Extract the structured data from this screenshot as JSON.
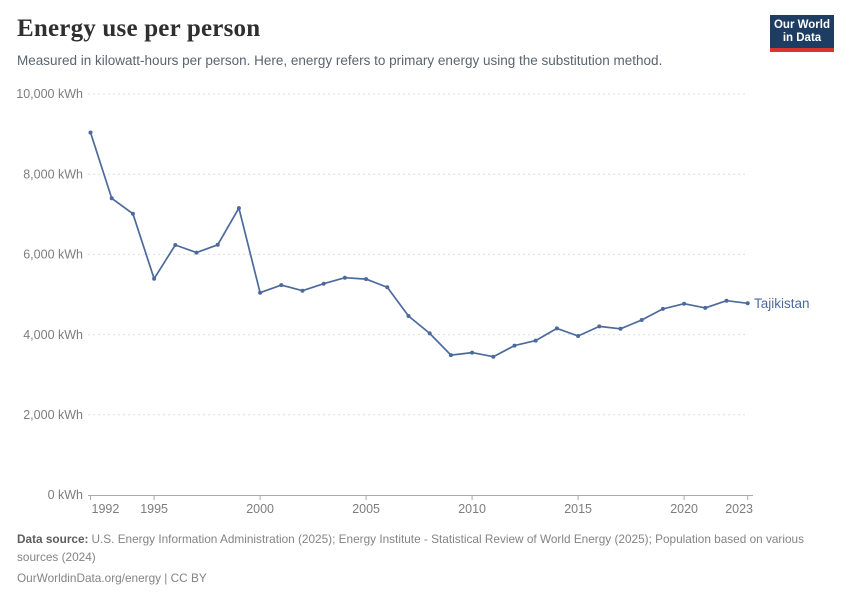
{
  "header": {
    "title": "Energy use per person",
    "subtitle": "Measured in kilowatt-hours per person. Here, energy refers to primary energy using the substitution method.",
    "logo": {
      "line1": "Our World",
      "line2": "in Data",
      "bg_color": "#1d3d63",
      "accent_color": "#d8352e",
      "text_color": "#ffffff"
    }
  },
  "chart_data": {
    "type": "line",
    "title": "Energy use per person",
    "unit": "kWh",
    "xlabel": "",
    "ylabel": "kWh",
    "xlim": [
      1992,
      2023
    ],
    "ylim": [
      0,
      10000
    ],
    "x_ticks": [
      1992,
      1995,
      2000,
      2005,
      2010,
      2015,
      2020,
      2023
    ],
    "y_ticks": [
      0,
      2000,
      4000,
      6000,
      8000,
      10000
    ],
    "y_tick_labels": [
      "0 kWh",
      "2,000 kWh",
      "4,000 kWh",
      "6,000 kWh",
      "8,000 kWh",
      "10,000 kWh"
    ],
    "grid": "horizontal-dashed",
    "legend_position": "end-of-line-label",
    "colors": {
      "gridline": "#dedede",
      "axis": "#a9a9a9",
      "tick_label": "#7d7d7d"
    },
    "series": [
      {
        "name": "Tajikistan",
        "color": "#4c6a9c",
        "x": [
          1992,
          1993,
          1994,
          1995,
          1996,
          1997,
          1998,
          1999,
          2000,
          2001,
          2002,
          2003,
          2004,
          2005,
          2006,
          2007,
          2008,
          2009,
          2010,
          2011,
          2012,
          2013,
          2014,
          2015,
          2016,
          2017,
          2018,
          2019,
          2020,
          2021,
          2022,
          2023
        ],
        "values": [
          9040,
          7400,
          7015,
          5395,
          6235,
          6045,
          6240,
          7155,
          5045,
          5235,
          5095,
          5270,
          5420,
          5385,
          5180,
          4465,
          4030,
          3490,
          3550,
          3450,
          3725,
          3850,
          4155,
          3965,
          4205,
          4145,
          4365,
          4640,
          4770,
          4665,
          4845,
          4780
        ]
      }
    ]
  },
  "footer": {
    "source_label": "Data source:",
    "source_text": "U.S. Energy Information Administration (2025); Energy Institute - Statistical Review of World Energy (2025); Population based on various sources (2024)",
    "link_text": "OurWorldinData.org/energy | CC BY"
  }
}
